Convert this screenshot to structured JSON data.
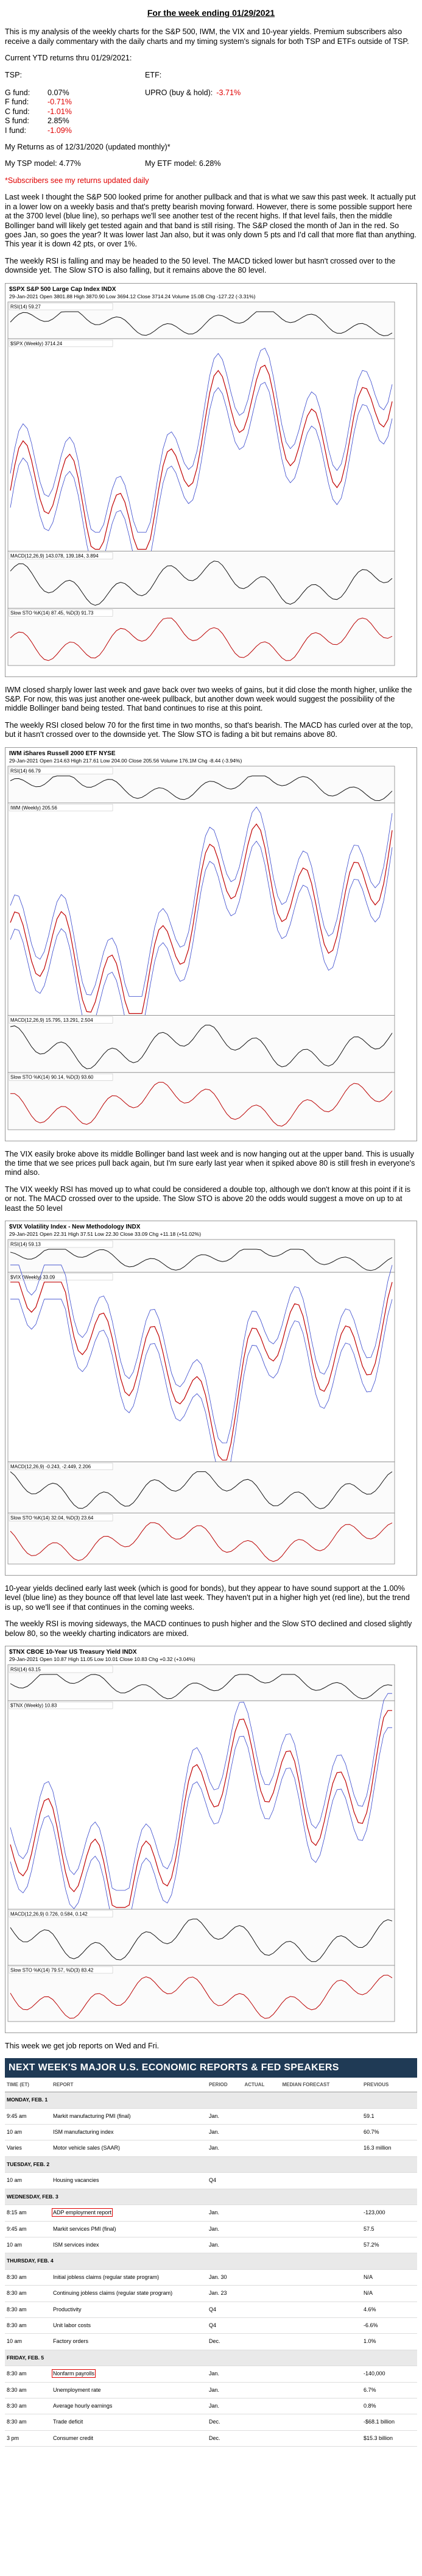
{
  "header": {
    "title": "For the week ending 01/29/2021"
  },
  "intro": "This is my analysis of the weekly charts for the S&P 500, IWM, the VIX and 10-year yields. Premium subscribers also receive a daily commentary with the daily charts and my timing system's signals for both TSP and ETFs outside of TSP.",
  "returns": {
    "heading": "Current YTD returns thru 01/29/2021:",
    "tsp_label": "TSP:",
    "etf_label": "ETF:",
    "tsp_funds": [
      {
        "name": "G fund:",
        "value": "0.07%"
      },
      {
        "name": "F fund:",
        "value": "-0.71%"
      },
      {
        "name": "C fund:",
        "value": "-1.01%"
      },
      {
        "name": "S fund:",
        "value": "2.85%"
      },
      {
        "name": "I fund:",
        "value": "-1.09%"
      }
    ],
    "etf": [
      {
        "name": "UPRO (buy & hold):",
        "value": "-3.71%"
      }
    ],
    "model_heading": "My Returns as of 12/31/2020 (updated monthly)*",
    "tsp_model": "My TSP model: 4.77%",
    "etf_model": "My ETF model: 6.28%",
    "note": "*Subscribers see my returns updated daily"
  },
  "sections": [
    {
      "paragraphs": [
        "Last week I thought the S&P 500 looked prime for another pullback and that is what we saw this past week. It actually put in a lower low on a weekly basis and that's pretty bearish moving forward. However, there is some possible support here at the 3700 level (blue line), so perhaps we'll see another test of the recent highs. If that level fails, then the middle Bollinger band will likely get tested again and that band is still rising. The S&P closed the month of Jan in the red. So goes Jan, so goes the year? It was lower last Jan also, but it was only down 5 pts and I'd call that more flat than anything. This year it is down 42 pts, or over 1%.",
        "The weekly RSI is falling and may be headed to the 50 level. The MACD ticked lower but hasn't crossed over to the downside yet. The Slow STO is also falling, but it remains above the 80 level."
      ],
      "chart": {
        "ticker": "$SPX S&P 500 Large Cap Index INDX",
        "info": "29-Jan-2021 Open 3801.88 High 3870.90 Low 3694.12 Close 3714.24 Volume 15.0B Chg -127.22 (-3.31%)",
        "panels": [
          "RSI(14) 59.27",
          "$SPX (Weekly) 3714.24",
          "MACD(12,26,9) 143.078, 139.184, 3.894",
          "Slow STO %K(14) 87.45, %D(3) 91.73"
        ]
      }
    },
    {
      "paragraphs": [
        "IWM closed sharply lower last week and gave back over two weeks of gains, but it did close the month higher, unlike the S&P. For now, this was just another one-week pullback, but another down week would suggest the possibility of the middle Bollinger band being tested. That band continues to rise at this point.",
        "The weekly RSI closed below 70 for the first time in two months, so that's bearish. The MACD has curled over at the top, but it hasn't crossed over to the downside yet. The Slow STO is fading a bit but remains above 80."
      ],
      "chart": {
        "ticker": "IWM iShares Russell 2000 ETF NYSE",
        "info": "29-Jan-2021 Open 214.63 High 217.61 Low 204.00 Close 205.56 Volume 176.1M Chg -8.44 (-3.94%)",
        "panels": [
          "RSI(14) 66.79",
          "IWM (Weekly) 205.56",
          "MACD(12,26,9) 15.795, 13.291, 2.504",
          "Slow STO %K(14) 90.14, %D(3) 93.60"
        ]
      }
    },
    {
      "paragraphs": [
        "The VIX easily broke above its middle Bollinger band last week and is now hanging out at the upper band. This is usually the time that we see prices pull back again, but I'm sure early last year when it spiked above 80 is still fresh in everyone's mind also.",
        "The VIX weekly RSI has moved up to what could be considered a double top, although we don't know at this point if it is or not. The MACD crossed over to the upside. The Slow STO is above 20 the odds would suggest a move on up to at least the 50 level"
      ],
      "chart": {
        "ticker": "$VIX Volatility Index - New Methodology INDX",
        "info": "29-Jan-2021 Open 22.31 High 37.51 Low 22.30 Close 33.09 Chg +11.18 (+51.02%)",
        "panels": [
          "RSI(14) 59.13",
          "$VIX (Weekly) 33.09",
          "MACD(12,26,9) -0.243, -2.449, 2.206",
          "Slow STO %K(14) 32.04, %D(3) 23.64"
        ]
      }
    },
    {
      "paragraphs": [
        "10-year yields declined early last week (which is good for bonds), but they appear to have sound support at the 1.00% level (blue line) as they bounce off that level late last week. They haven't put in a higher high yet (red line), but the trend is up, so we'll see if that continues in the coming weeks.",
        "The weekly RSI is moving sideways, the MACD continues to push higher and the Slow STO declined and closed slightly below 80, so the weekly charting indicators are mixed."
      ],
      "chart": {
        "ticker": "$TNX CBOE 10-Year US Treasury Yield INDX",
        "info": "29-Jan-2021 Open 10.87 High 11.05 Low 10.01 Close 10.83 Chg +0.32 (+3.04%)",
        "panels": [
          "RSI(14) 63.15",
          "$TNX (Weekly) 10.83",
          "MACD(12,26,9) 0.726, 0.584, 0.142",
          "Slow STO %K(14) 79.57, %D(3) 83.42"
        ]
      }
    }
  ],
  "closing": "This week we get job reports on Wed and Fri.",
  "calendar": {
    "title": "NEXT WEEK'S MAJOR U.S. ECONOMIC REPORTS & FED SPEAKERS",
    "columns": [
      "TIME (ET)",
      "REPORT",
      "PERIOD",
      "ACTUAL",
      "MEDIAN FORECAST",
      "PREVIOUS"
    ],
    "days": [
      {
        "day": "MONDAY, FEB. 1",
        "rows": [
          [
            "9:45 am",
            "Markit manufacturing PMI (final)",
            "Jan.",
            "59.1"
          ],
          [
            "10 am",
            "ISM manufacturing index",
            "Jan.",
            "60.7%"
          ],
          [
            "Varies",
            "Motor vehicle sales (SAAR)",
            "Jan.",
            "16.3 million"
          ]
        ]
      },
      {
        "day": "TUESDAY, FEB. 2",
        "rows": [
          [
            "10 am",
            "Housing vacancies",
            "Q4",
            ""
          ]
        ]
      },
      {
        "day": "WEDNESDAY, FEB. 3",
        "rows": [
          [
            "8:15 am",
            "ADP employment report",
            "Jan.",
            "-123,000"
          ],
          [
            "9:45 am",
            "Markit services PMI (final)",
            "Jan.",
            "57.5"
          ],
          [
            "10 am",
            "ISM services index",
            "Jan.",
            "57.2%"
          ]
        ]
      },
      {
        "day": "THURSDAY, FEB. 4",
        "rows": [
          [
            "8:30 am",
            "Initial jobless claims (regular state program)",
            "Jan. 30",
            "N/A"
          ],
          [
            "8:30 am",
            "Continuing jobless claims (regular state program)",
            "Jan. 23",
            "N/A"
          ],
          [
            "8:30 am",
            "Productivity",
            "Q4",
            "4.6%"
          ],
          [
            "8:30 am",
            "Unit labor costs",
            "Q4",
            "-6.6%"
          ],
          [
            "10 am",
            "Factory orders",
            "Dec.",
            "1.0%"
          ]
        ]
      },
      {
        "day": "FRIDAY, FEB. 5",
        "rows": [
          [
            "8:30 am",
            "Nonfarm payrolls",
            "Jan.",
            "-140,000"
          ],
          [
            "8:30 am",
            "Unemployment rate",
            "Jan.",
            "6.7%"
          ],
          [
            "8:30 am",
            "Average hourly earnings",
            "Jan.",
            "0.8%"
          ],
          [
            "8:30 am",
            "Trade deficit",
            "Dec.",
            "-$68.1 billion"
          ],
          [
            "3 pm",
            "Consumer credit",
            "Dec.",
            "$15.3 billion"
          ]
        ]
      }
    ]
  }
}
